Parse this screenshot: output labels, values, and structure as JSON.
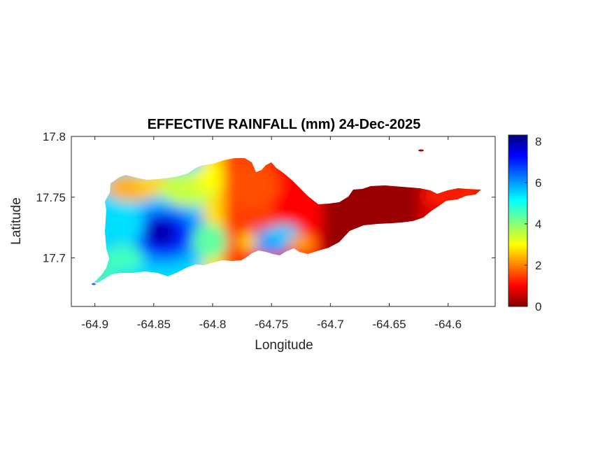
{
  "title": "EFFECTIVE RAINFALL (mm) 24-Dec-2025",
  "xlabel": "Longitude",
  "ylabel": "Latitude",
  "chart_data": {
    "type": "heatmap",
    "title": "EFFECTIVE RAINFALL (mm) 24-Dec-2025",
    "xlabel": "Longitude",
    "ylabel": "Latitude",
    "xlim": [
      -64.92,
      -64.56
    ],
    "ylim": [
      17.66,
      17.8
    ],
    "xticks": [
      -64.9,
      -64.85,
      -64.8,
      -64.75,
      -64.7,
      -64.65,
      -64.6
    ],
    "xtick_labels": [
      "-64.9",
      "-64.85",
      "-64.8",
      "-64.75",
      "-64.7",
      "-64.65",
      "-64.6"
    ],
    "yticks": [
      17.7,
      17.75,
      17.8
    ],
    "ytick_labels": [
      "17.7",
      "17.75",
      "17.8"
    ],
    "colorbar": {
      "colormap": "jet",
      "range": [
        0,
        8.3
      ],
      "ticks": [
        0,
        2,
        4,
        6,
        8
      ],
      "tick_labels": [
        "0",
        "2",
        "4",
        "6",
        "8"
      ],
      "placement": "right"
    },
    "field": {
      "description_units": "mm",
      "max_center": {
        "lon": -64.845,
        "lat": 17.718,
        "value": 8.0
      },
      "min_center": {
        "lon": -64.67,
        "lat": 17.738,
        "value": 0.0
      },
      "approx_values": [
        {
          "lon": -64.87,
          "lat": 17.765,
          "value": 2.3
        },
        {
          "lon": -64.82,
          "lat": 17.755,
          "value": 3.5
        },
        {
          "lon": -64.79,
          "lat": 17.74,
          "value": 2.5
        },
        {
          "lon": -64.76,
          "lat": 17.75,
          "value": 1.2
        },
        {
          "lon": -64.72,
          "lat": 17.73,
          "value": 0.7
        },
        {
          "lon": -64.63,
          "lat": 17.74,
          "value": 0.6
        },
        {
          "lon": -64.58,
          "lat": 17.752,
          "value": 1.0
        },
        {
          "lon": -64.745,
          "lat": 17.71,
          "value": 5.5
        },
        {
          "lon": -64.88,
          "lat": 17.7,
          "value": 4.8
        },
        {
          "lon": -64.9,
          "lat": 17.68,
          "value": 6.0
        }
      ]
    },
    "grid": false
  }
}
